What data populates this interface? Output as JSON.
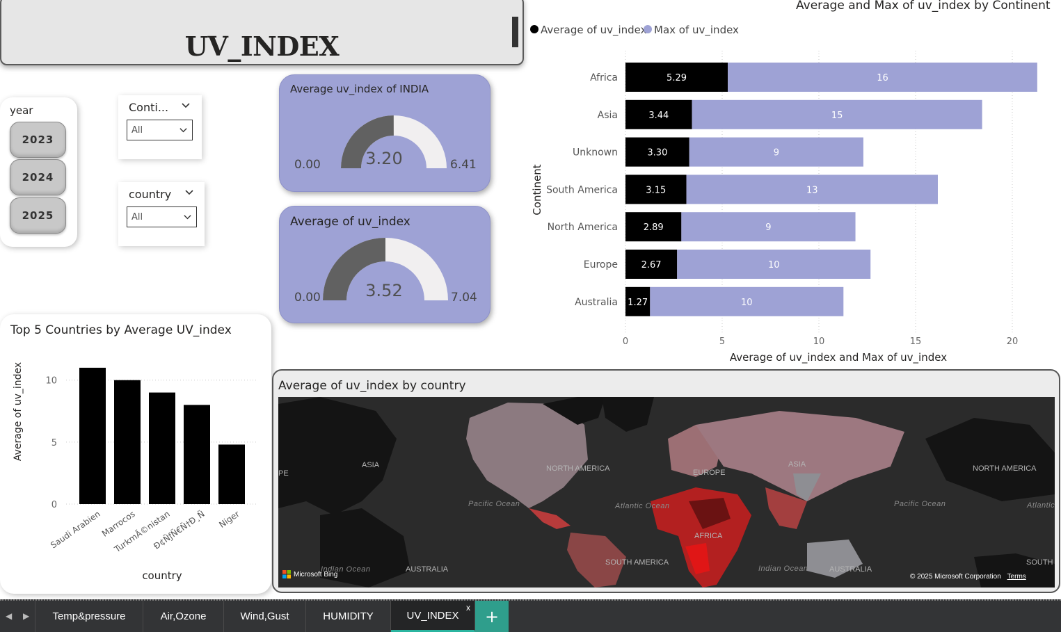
{
  "title": "UV_INDEX",
  "year_slicer": {
    "label": "year",
    "options": [
      "2023",
      "2024",
      "2025"
    ]
  },
  "continent_slicer": {
    "label": "Conti...",
    "value": "All"
  },
  "country_slicer": {
    "label": "country",
    "value": "All"
  },
  "gauge_india": {
    "title": "Average uv_index of INDIA",
    "value": 3.2,
    "value_label": "3.20",
    "min_label": "0.00",
    "max": 6.41,
    "max_label": "6.41"
  },
  "gauge_all": {
    "title": "Average of uv_index",
    "value": 3.52,
    "value_label": "3.52",
    "min_label": "0.00",
    "max": 7.04,
    "max_label": "7.04"
  },
  "top5": {
    "title": "Top 5 Countries by Average UV_index",
    "chart_data": {
      "type": "bar",
      "categories": [
        "Saudi Arabien",
        "Marrocos",
        "TurkmÃ©nistan",
        "Ð¢ÑƒÑ€Ñ†Ð¸Ñ",
        "Niger"
      ],
      "values": [
        11,
        10,
        9,
        8,
        4.8
      ],
      "xlabel": "country",
      "ylabel": "Average of uv_index",
      "yticks": [
        "0",
        "5",
        "10"
      ],
      "ylim": [
        0,
        11.5
      ]
    }
  },
  "continent": {
    "title": "Average and Max of uv_index by Continent",
    "legend": [
      "Average of uv_index",
      "Max of uv_index"
    ],
    "chart_data": {
      "type": "bar",
      "orientation": "horizontal-stacked",
      "categories": [
        "Africa",
        "Asia",
        "Unknown",
        "South America",
        "North America",
        "Europe",
        "Australia"
      ],
      "series": [
        {
          "name": "Average of uv_index",
          "values": [
            5.29,
            3.44,
            3.3,
            3.15,
            2.89,
            2.67,
            1.27
          ],
          "labels": [
            "5.29",
            "3.44",
            "3.30",
            "3.15",
            "2.89",
            "2.67",
            "1.27"
          ],
          "color": "#000000"
        },
        {
          "name": "Max of uv_index",
          "values": [
            16,
            15,
            9,
            13,
            9,
            10,
            10
          ],
          "labels": [
            "16",
            "15",
            "9",
            "13",
            "9",
            "10",
            "10"
          ],
          "color": "#9ea2d5"
        }
      ],
      "xlabel": "Average of uv_index and Max of uv_index",
      "ylabel": "Continent",
      "xticks": [
        "0",
        "5",
        "10",
        "15",
        "20"
      ],
      "xlim": [
        0,
        21.5
      ]
    }
  },
  "map": {
    "title": "Average of uv_index by country",
    "labels": [
      "ASIA",
      "NORTH AMERICA",
      "EUROPE",
      "ASIA",
      "NORTH AMERICA",
      "Pacific Ocean",
      "Atlantic Ocean",
      "Pacific Ocean",
      "Atlantic Oc",
      "AFRICA",
      "SOUTH AMERICA",
      "Indian Ocean",
      "Indian Ocean",
      "AUSTRALIA",
      "AUSTRALIA",
      "SOUTH AMERI",
      "PE"
    ],
    "brand": "Microsoft Bing",
    "copyright": "© 2025 Microsoft Corporation",
    "terms": "Terms"
  },
  "tabs": [
    "Temp&pressure",
    "Air,Ozone",
    "Wind,Gust",
    "HUMIDITY",
    "UV_INDEX"
  ],
  "active_tab": "UV_INDEX",
  "tab_close": "x",
  "tab_add": "+"
}
